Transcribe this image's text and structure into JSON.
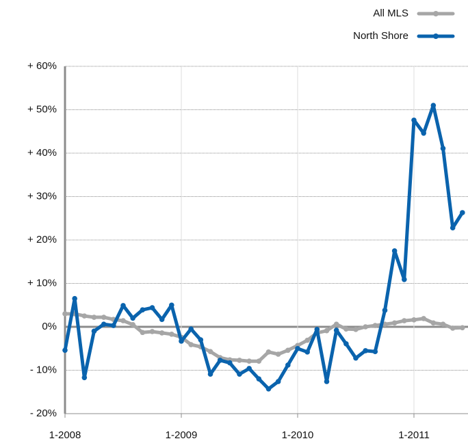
{
  "chart_data": {
    "type": "line",
    "categories": [
      "1-2008",
      null,
      null,
      null,
      null,
      null,
      null,
      null,
      null,
      null,
      null,
      null,
      "1-2009",
      null,
      null,
      null,
      null,
      null,
      null,
      null,
      null,
      null,
      null,
      null,
      "1-2010",
      null,
      null,
      null,
      null,
      null,
      null,
      null,
      null,
      null,
      null,
      null,
      "1-2011",
      null,
      null,
      null,
      null,
      null
    ],
    "series": [
      {
        "name": "All MLS",
        "color": "#a6a6a6",
        "values": [
          3,
          3,
          2.5,
          2.2,
          2.2,
          1.7,
          1.4,
          0.5,
          -1.3,
          -1.1,
          -1.4,
          -1.7,
          -2.4,
          -4.1,
          -4.6,
          -5.7,
          -7.1,
          -7.6,
          -7.7,
          -7.9,
          -7.9,
          -5.8,
          -6.3,
          -5.4,
          -4.3,
          -3.1,
          -1.4,
          -0.9,
          0.6,
          -0.5,
          -0.6,
          0,
          0.3,
          0.6,
          0.9,
          1.4,
          1.6,
          1.9,
          0.9,
          0.6,
          -0.3,
          -0.2
        ]
      },
      {
        "name": "North Shore",
        "color": "#0a63ad",
        "values": [
          -5.4,
          6.5,
          -11.7,
          -1,
          0.6,
          0.3,
          4.9,
          2,
          3.9,
          4.4,
          1.7,
          5,
          -3.3,
          -0.5,
          -3,
          -10.9,
          -7.7,
          -8.3,
          -10.9,
          -9.6,
          -12,
          -14.3,
          -12.6,
          -8.8,
          -5,
          -5.8,
          -0.6,
          -12.6,
          -0.8,
          -3.9,
          -7.2,
          -5.5,
          -5.7,
          3.8,
          17.5,
          10.9,
          47.6,
          44.6,
          51,
          41.1,
          22.8,
          26.3
        ]
      }
    ],
    "ylim": [
      -20,
      60
    ],
    "yticks": [
      {
        "value": -20,
        "label": "- 20%"
      },
      {
        "value": -10,
        "label": "- 10%"
      },
      {
        "value": 0,
        "label": "0%"
      },
      {
        "value": 10,
        "label": "+ 10%"
      },
      {
        "value": 20,
        "label": "+ 20%"
      },
      {
        "value": 30,
        "label": "+ 30%"
      },
      {
        "value": 40,
        "label": "+ 40%"
      },
      {
        "value": 50,
        "label": "+ 50%"
      },
      {
        "value": 60,
        "label": "+ 60%"
      }
    ],
    "grid": true,
    "legend": "top-right"
  }
}
